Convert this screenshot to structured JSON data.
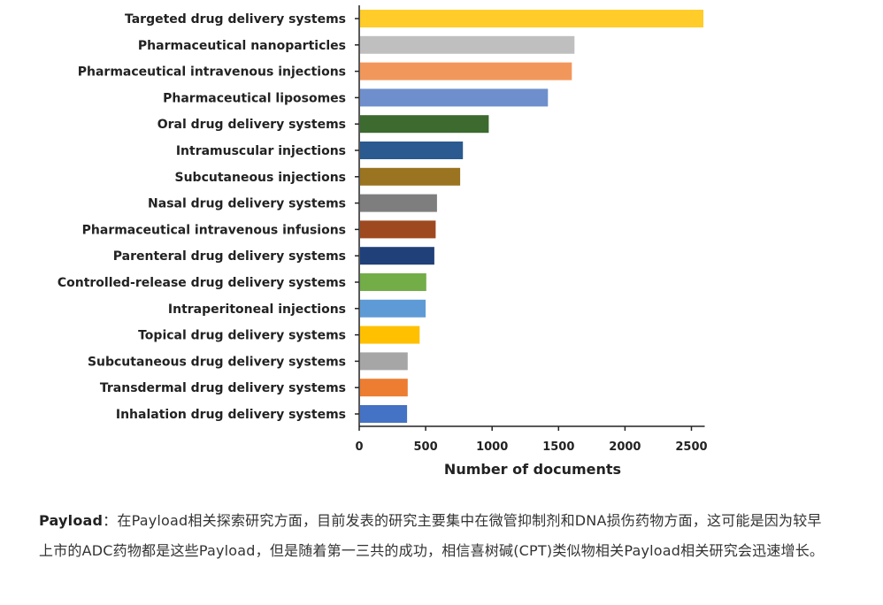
{
  "chart_data": {
    "type": "bar",
    "orientation": "horizontal",
    "categories": [
      "Targeted drug delivery systems",
      "Pharmaceutical nanoparticles",
      "Pharmaceutical intravenous injections",
      "Pharmaceutical liposomes",
      "Oral drug delivery systems",
      "Intramuscular injections",
      "Subcutaneous injections",
      "Nasal drug delivery systems",
      "Pharmaceutical intravenous infusions",
      "Parenteral drug delivery systems",
      "Controlled-release drug delivery systems",
      "Intraperitoneal injections",
      "Topical drug delivery systems",
      "Subcutaneous drug delivery systems",
      "Transdermal drug delivery systems",
      "Inhalation drug delivery systems"
    ],
    "values": [
      2590,
      1620,
      1600,
      1420,
      975,
      780,
      760,
      585,
      575,
      565,
      505,
      500,
      455,
      365,
      365,
      360
    ],
    "colors": [
      "#ffcc29",
      "#bfbfbf",
      "#f2975b",
      "#6f8fcc",
      "#3c6a2f",
      "#2a5a8f",
      "#9a7420",
      "#7e7e7e",
      "#9e4920",
      "#20407a",
      "#72ad47",
      "#5e9bd6",
      "#ffc000",
      "#a6a6a6",
      "#ed7d31",
      "#4472c4"
    ],
    "xlabel": "Number of documents",
    "xlim": [
      0,
      2600
    ],
    "xticks": [
      0,
      500,
      1000,
      1500,
      2000,
      2500
    ],
    "grid": false,
    "legend": "none"
  },
  "article": {
    "lead": "Payload",
    "text": "：在Payload相关探索研究方面，目前发表的研究主要集中在微管抑制剂和DNA损伤药物方面，这可能是因为较早上市的ADC药物都是这些Payload，但是随着第一三共的成功，相信喜树碱(CPT)类似物相关Payload相关研究会迅速增长。"
  }
}
